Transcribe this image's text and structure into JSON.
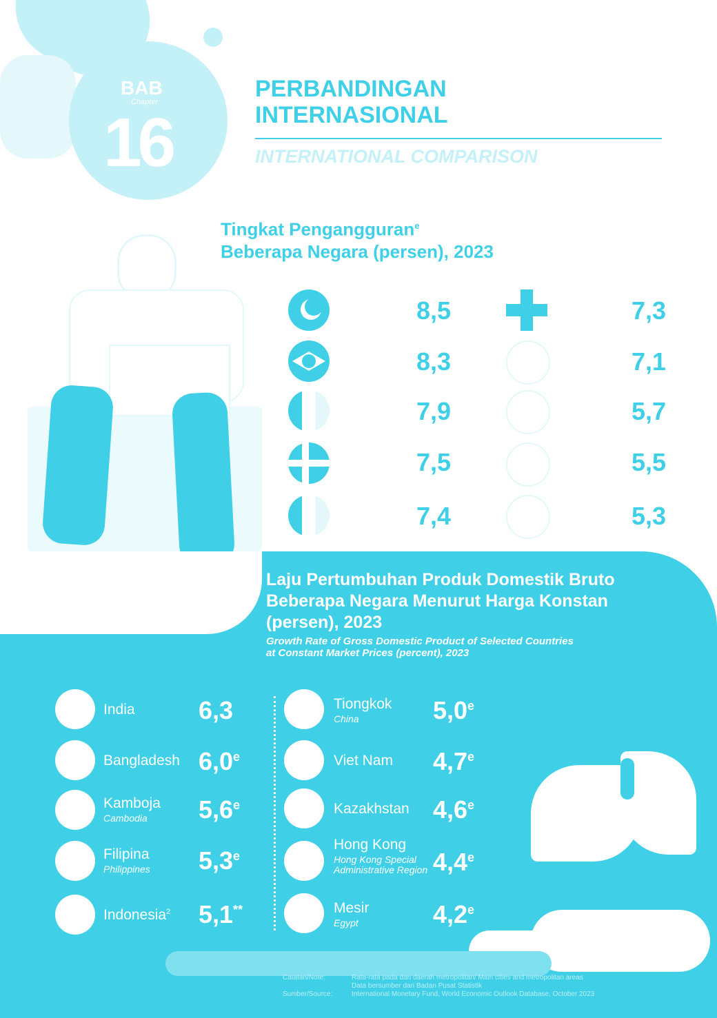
{
  "header": {
    "bab_word": "BAB",
    "bab_sub": "Chapter",
    "chapter_number": "16",
    "title_id": "PERBANDINGAN INTERNASIONAL",
    "title_en": "INTERNATIONAL COMPARISON"
  },
  "unemployment": {
    "title_line1": "Tingkat Pengangguran",
    "title_sup": "e",
    "title_line2": "Beberapa Negara (persen), 2023",
    "left_values": [
      "8,5",
      "8,3",
      "7,9",
      "7,5",
      "7,4"
    ],
    "right_values": [
      "7,3",
      "7,1",
      "5,7",
      "5,5",
      "5,3"
    ]
  },
  "gdp": {
    "title": "Laju Pertumbuhan Produk Domestik Bruto Beberapa Negara Menurut Harga Konstan (persen), 2023",
    "subtitle": "Growth Rate of Gross Domestic Product of Selected Countries at Constant Market Prices (percent), 2023",
    "left": [
      {
        "name": "India",
        "name_en": "",
        "value": "6,3",
        "mark": ""
      },
      {
        "name": "Bangladesh",
        "name_en": "",
        "value": "6,0",
        "mark": "e"
      },
      {
        "name": "Kamboja",
        "name_en": "Cambodia",
        "value": "5,6",
        "mark": "e"
      },
      {
        "name": "Filipina",
        "name_en": "Philippines",
        "value": "5,3",
        "mark": "e"
      },
      {
        "name": "Indonesia",
        "name_sup": "2",
        "name_en": "",
        "value": "5,1",
        "mark": "**"
      }
    ],
    "right": [
      {
        "name": "Tiongkok",
        "name_en": "China",
        "value": "5,0",
        "mark": "e"
      },
      {
        "name": "Viet Nam",
        "name_en": "",
        "value": "4,7",
        "mark": "e"
      },
      {
        "name": "Kazakhstan",
        "name_en": "",
        "value": "4,6",
        "mark": "e"
      },
      {
        "name": "Hong Kong",
        "name_en": "Hong Kong Special Administrative Region",
        "value": "4,4",
        "mark": "e"
      },
      {
        "name": "Mesir",
        "name_en": "Egypt",
        "value": "4,2",
        "mark": "e"
      }
    ]
  },
  "notes": {
    "note_label": "Catatan/Note:",
    "note_text_1": "Rata-rata pada dan daerah metropolitan/ Main cities and metropolitan areas",
    "note_text_2": "Data bersumber dari Badan Pusat Statistik",
    "source_label": "Sumber/Source:",
    "source_text": "International Monetary Fund, World Economic Outlook Database, October 2023"
  },
  "colors": {
    "accent": "#3fd0e8",
    "light": "#c4f1f8",
    "white": "#ffffff"
  }
}
